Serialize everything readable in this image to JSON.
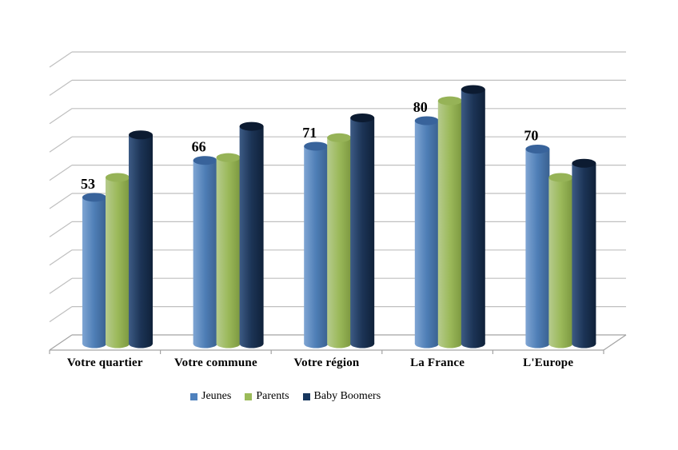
{
  "chart_data": {
    "type": "bar",
    "style": "3d-cylinder-column",
    "title": "",
    "categories": [
      "Votre quartier",
      "Votre commune",
      "Votre région",
      "La France",
      "L'Europe"
    ],
    "series": [
      {
        "name": "Jeunes",
        "color": "#4F81BD",
        "gradient": [
          "#7FA5D3",
          "#4E7EB6",
          "#3A6190"
        ],
        "top_color": "#38639B",
        "values": [
          53,
          66,
          71,
          80,
          70
        ],
        "labeled": true
      },
      {
        "name": "Parents",
        "color": "#9BBB59",
        "gradient": [
          "#B6CB8E",
          "#9BB95A",
          "#7C9840"
        ],
        "top_color": "#96B357",
        "values": [
          60,
          67,
          74,
          87,
          60
        ],
        "labeled": false
      },
      {
        "name": "Baby Boomers",
        "color": "#17375E",
        "gradient": [
          "#3D5B85",
          "#1C3456",
          "#0F2139"
        ],
        "top_color": "#0C1B31",
        "values": [
          75,
          78,
          81,
          91,
          65
        ],
        "labeled": false
      }
    ],
    "y_axis": {
      "min": 0,
      "max": 100,
      "step": 10,
      "tick_labels_visible": false,
      "gridlines": true
    },
    "legend": {
      "position": "bottom",
      "entries": [
        "Jeunes",
        "Parents",
        "Baby Boomers"
      ]
    },
    "colors": {
      "gridline": "#BFBFBF",
      "axis": "#A3A3A3",
      "label_text": "#000000",
      "background": "#FFFFFF"
    }
  }
}
